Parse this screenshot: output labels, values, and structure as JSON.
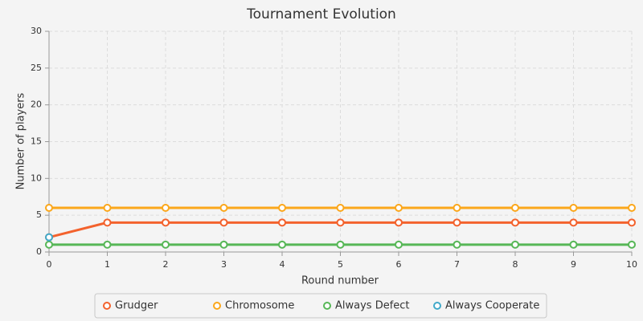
{
  "chart_data": {
    "type": "line",
    "title": "Tournament Evolution",
    "x_label": "Round number",
    "y_label": "Number of players",
    "x": [
      0,
      1,
      2,
      3,
      4,
      5,
      6,
      7,
      8,
      9,
      10
    ],
    "xlim": [
      0,
      10
    ],
    "xticks": [
      0,
      1,
      2,
      3,
      4,
      5,
      6,
      7,
      8,
      9,
      10
    ],
    "ylim": [
      0,
      30
    ],
    "yticks": [
      0,
      5,
      10,
      15,
      20,
      25,
      30
    ],
    "grid": true,
    "legend": "bottom",
    "series": [
      {
        "name": "Grudger",
        "color": "#f3622d",
        "values": [
          2,
          4,
          4,
          4,
          4,
          4,
          4,
          4,
          4,
          4,
          4
        ]
      },
      {
        "name": "Chromosome",
        "color": "#fba71b",
        "values": [
          6,
          6,
          6,
          6,
          6,
          6,
          6,
          6,
          6,
          6,
          6
        ]
      },
      {
        "name": "Always Defect",
        "color": "#57b757",
        "values": [
          1,
          1,
          1,
          1,
          1,
          1,
          1,
          1,
          1,
          1,
          1
        ]
      },
      {
        "name": "Always Cooperate",
        "color": "#41a9c9",
        "values": [
          2,
          null,
          null,
          null,
          null,
          null,
          null,
          null,
          null,
          null,
          null
        ]
      }
    ]
  }
}
